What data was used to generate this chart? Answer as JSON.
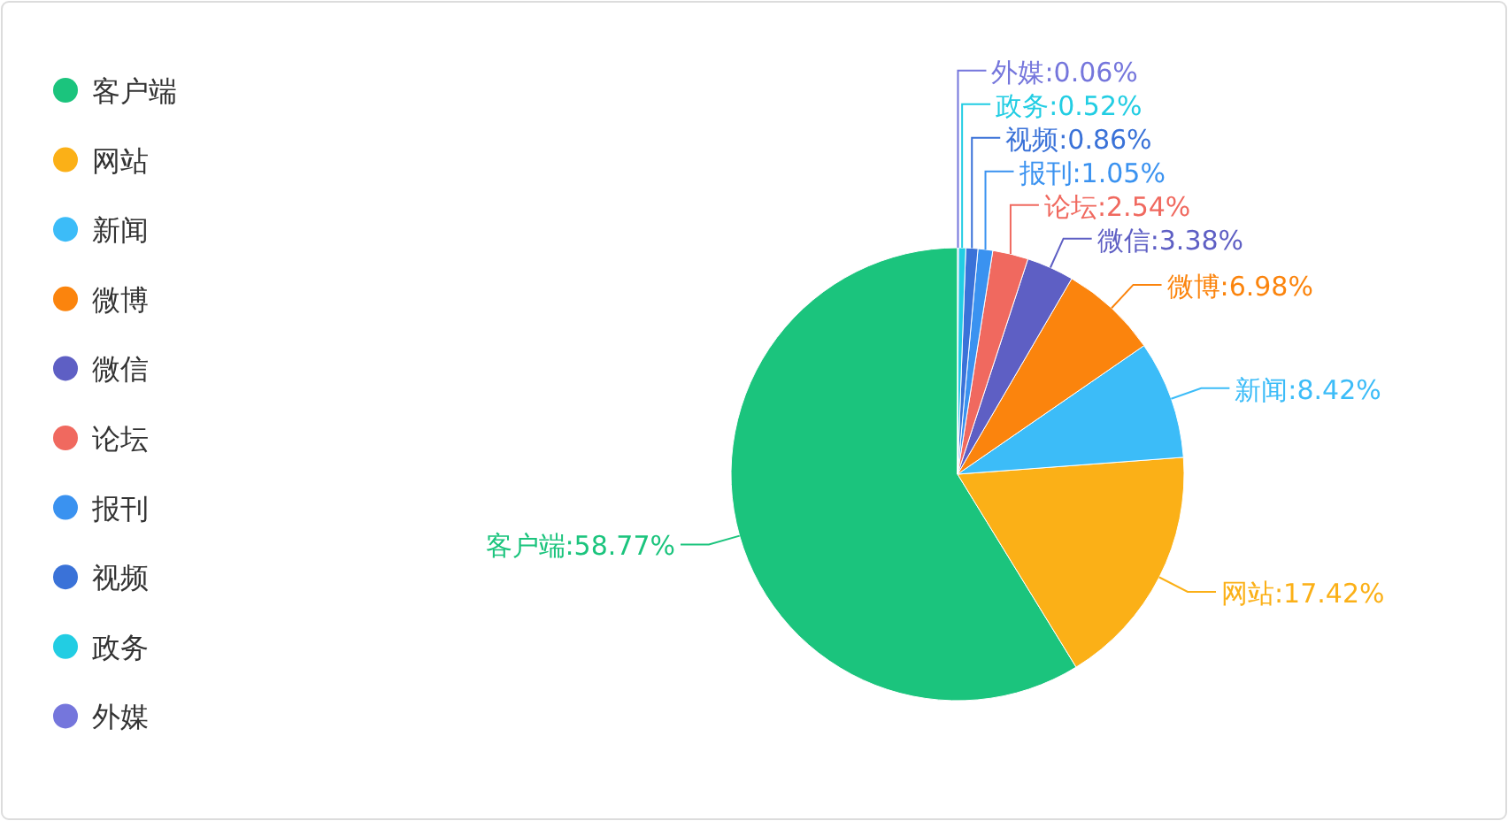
{
  "chart_data": {
    "type": "pie",
    "categories": [
      "客户端",
      "网站",
      "新闻",
      "微博",
      "微信",
      "论坛",
      "报刊",
      "视频",
      "政务",
      "外媒"
    ],
    "values": [
      58.77,
      17.42,
      8.42,
      6.98,
      3.38,
      2.54,
      1.05,
      0.86,
      0.52,
      0.06
    ],
    "colors": [
      "#1bc47d",
      "#fbb017",
      "#3cbcf8",
      "#fb840d",
      "#5e5fc4",
      "#f0695f",
      "#3a92f0",
      "#3a72d8",
      "#22cde3",
      "#7576dc"
    ],
    "value_labels": [
      ":58.77%",
      ":17.42%",
      ":8.42%",
      ":6.98%",
      ":3.38%",
      ":2.54%",
      ":1.05%",
      ":0.86%",
      ":0.52%",
      ":0.06%"
    ],
    "legend": "left"
  }
}
